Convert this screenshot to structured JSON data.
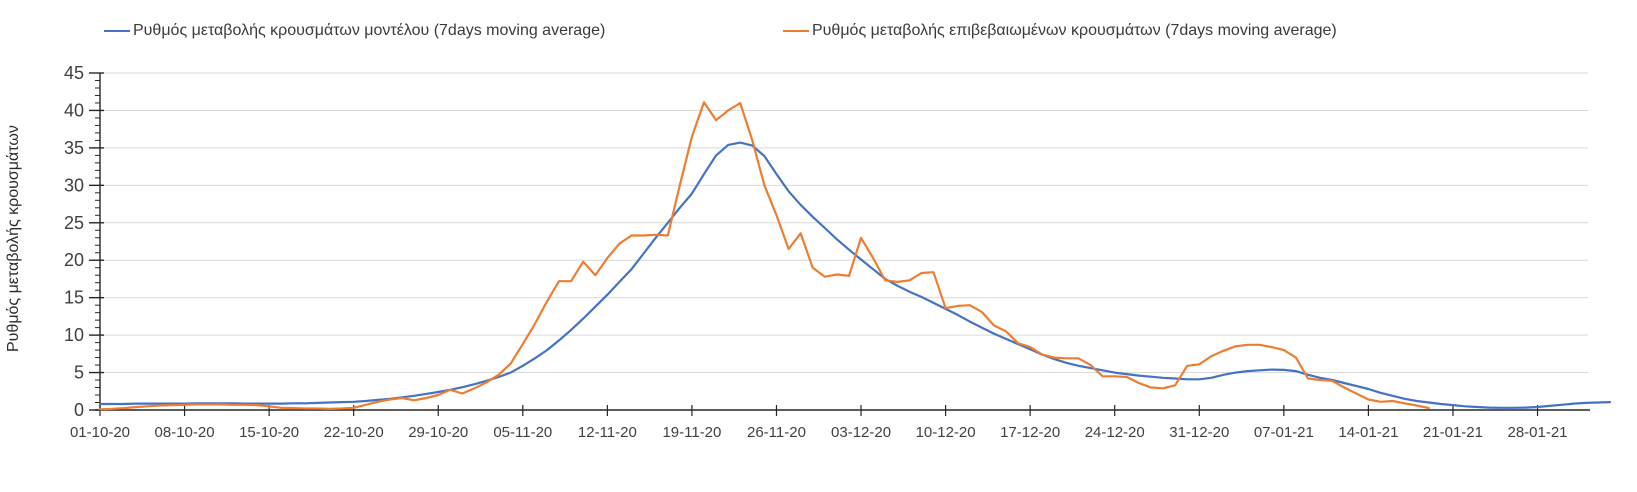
{
  "chart_data": {
    "type": "line",
    "title": "",
    "xlabel": "",
    "ylabel": "Ρυθμός μεταβολής κρουσμάτων",
    "ylim": [
      0,
      45
    ],
    "ytick_step": 5,
    "y_minor_tick_step": 1,
    "y_tick_labels": [
      "0",
      "5",
      "10",
      "15",
      "20",
      "25",
      "30",
      "35",
      "40",
      "45"
    ],
    "grid": "horizontal-only",
    "legend_position": "top",
    "x_tick_interval_days": 7,
    "x_tick_labels": [
      "01-10-20",
      "08-10-20",
      "15-10-20",
      "22-10-20",
      "29-10-20",
      "05-11-20",
      "12-11-20",
      "19-11-20",
      "26-11-20",
      "03-12-20",
      "10-12-20",
      "17-12-20",
      "24-12-20",
      "31-12-20",
      "07-01-21",
      "14-01-21",
      "21-01-21",
      "28-01-21"
    ],
    "series": [
      {
        "name": "Ρυθμός μεταβολής κρουσμάτων μοντέλου (7days moving average)",
        "color": "#4472C4",
        "start_day": 0,
        "values": [
          0.8,
          0.8,
          0.8,
          0.85,
          0.85,
          0.85,
          0.85,
          0.85,
          0.9,
          0.9,
          0.9,
          0.9,
          0.85,
          0.85,
          0.85,
          0.85,
          0.9,
          0.9,
          0.95,
          1.0,
          1.05,
          1.1,
          1.2,
          1.35,
          1.5,
          1.7,
          1.9,
          2.15,
          2.4,
          2.7,
          3.05,
          3.45,
          3.9,
          4.4,
          5.0,
          5.9,
          6.9,
          8.0,
          9.3,
          10.7,
          12.2,
          13.8,
          15.4,
          17.1,
          18.8,
          20.9,
          23.0,
          25.0,
          27.0,
          28.9,
          31.5,
          34.0,
          35.4,
          35.7,
          35.3,
          33.9,
          31.5,
          29.2,
          27.4,
          25.8,
          24.3,
          22.8,
          21.4,
          20.1,
          18.8,
          17.5,
          16.6,
          15.8,
          15.1,
          14.3,
          13.5,
          12.7,
          11.8,
          11.0,
          10.2,
          9.5,
          8.8,
          8.1,
          7.4,
          6.8,
          6.3,
          5.9,
          5.6,
          5.3,
          5.0,
          4.8,
          4.6,
          4.45,
          4.3,
          4.2,
          4.1,
          4.1,
          4.3,
          4.7,
          5.0,
          5.2,
          5.3,
          5.4,
          5.35,
          5.2,
          4.7,
          4.3,
          4.0,
          3.6,
          3.2,
          2.8,
          2.3,
          1.9,
          1.5,
          1.2,
          1.0,
          0.8,
          0.65,
          0.5,
          0.4,
          0.32,
          0.3,
          0.3,
          0.32,
          0.4,
          0.55,
          0.7,
          0.85,
          0.95,
          1.0,
          1.05
        ]
      },
      {
        "name": "Ρυθμός μεταβολής επιβεβαιωμένων κρουσμάτων (7days moving average)",
        "color": "#ED7D31",
        "start_day": 0,
        "values": [
          0.1,
          0.15,
          0.25,
          0.4,
          0.5,
          0.6,
          0.65,
          0.7,
          0.75,
          0.75,
          0.75,
          0.7,
          0.7,
          0.65,
          0.5,
          0.3,
          0.25,
          0.2,
          0.2,
          0.15,
          0.2,
          0.3,
          0.7,
          1.1,
          1.4,
          1.6,
          1.3,
          1.6,
          2.0,
          2.7,
          2.2,
          2.9,
          3.7,
          4.7,
          6.2,
          8.8,
          11.5,
          14.5,
          17.2,
          17.2,
          19.8,
          18.0,
          20.3,
          22.2,
          23.3,
          23.3,
          23.4,
          23.3,
          30.0,
          36.5,
          41.1,
          38.7,
          40.0,
          41.0,
          36.0,
          30.0,
          26.0,
          21.5,
          23.6,
          19.0,
          17.8,
          18.1,
          17.9,
          23.0,
          20.3,
          17.3,
          17.1,
          17.3,
          18.3,
          18.4,
          13.6,
          13.9,
          14.0,
          13.1,
          11.3,
          10.5,
          8.9,
          8.4,
          7.4,
          7.0,
          6.9,
          6.9,
          6.0,
          4.5,
          4.5,
          4.4,
          3.6,
          3.0,
          2.9,
          3.3,
          5.9,
          6.1,
          7.2,
          7.9,
          8.5,
          8.7,
          8.7,
          8.4,
          8.0,
          7.0,
          4.2,
          4.0,
          3.9,
          3.0,
          2.2,
          1.4,
          1.1,
          1.2,
          0.9,
          0.6,
          0.25
        ]
      }
    ]
  },
  "colors": {
    "gridline": "#D9D9D9",
    "axis": "#262626",
    "tick_text": "#404040",
    "background": "#FFFFFF"
  }
}
